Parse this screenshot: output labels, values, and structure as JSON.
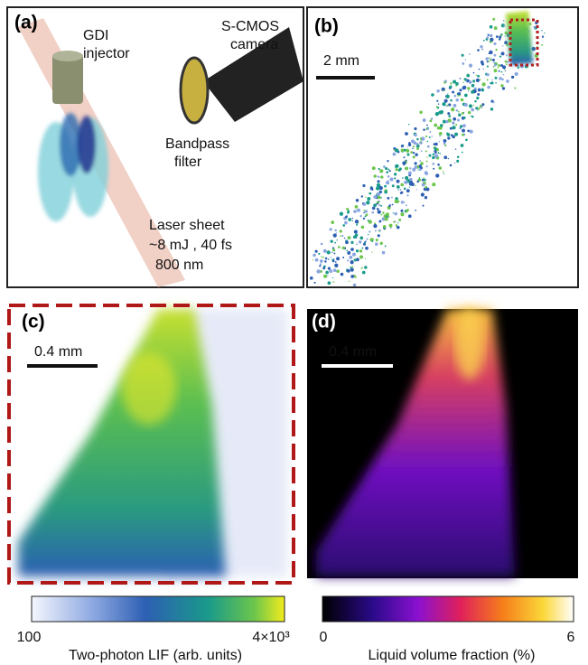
{
  "panels": [
    {
      "label": "(a)",
      "annotations": [
        [
          "GDI",
          "injector"
        ],
        [
          "S-CMOS",
          "camera"
        ],
        [
          "Bandpass",
          "filter"
        ],
        [
          "Laser sheet",
          "~8 mJ , 40 fs",
          "800 nm"
        ]
      ]
    },
    {
      "label": "(b)",
      "scale_bar": "2 mm"
    },
    {
      "label": "(c)",
      "scale_bar": "0.4 mm"
    },
    {
      "label": "(d)",
      "scale_bar": "0.4 mm"
    }
  ],
  "colorbars": [
    {
      "min_label": "100",
      "max_label": "4×10³",
      "title": "Two-photon LIF (arb. units)"
    },
    {
      "min_label": "0",
      "max_label": "6",
      "title": "Liquid volume fraction (%)"
    }
  ]
}
